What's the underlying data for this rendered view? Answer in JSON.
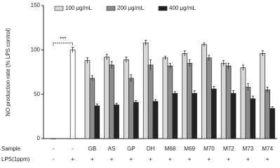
{
  "chart_data": {
    "type": "bar",
    "y_label": "NO production rate (% LPS control)",
    "row_headers": [
      "Sample",
      "LPS(1ppm)"
    ],
    "categories": [
      "-",
      "-",
      "GB",
      "AS",
      "GP",
      "DH",
      "M68",
      "M69",
      "M70",
      "M72",
      "M73",
      "M74"
    ],
    "lps_row": [
      "-",
      "+",
      "+",
      "+",
      "+",
      "+",
      "+",
      "+",
      "+",
      "+",
      "+",
      "+"
    ],
    "control": {
      "color": "#ffffff",
      "values": [
        0,
        100,
        null,
        null,
        null,
        null,
        null,
        null,
        null,
        null,
        null,
        null
      ],
      "errors": [
        null,
        3,
        null,
        null,
        null,
        null,
        null,
        null,
        null,
        null,
        null,
        null
      ]
    },
    "series": [
      {
        "name": "100 μg/mL",
        "color": "#d9d9d9",
        "values": [
          null,
          null,
          88,
          92,
          89,
          108,
          91,
          96,
          106,
          85,
          80,
          96
        ],
        "errors": [
          null,
          null,
          3,
          3,
          3,
          3,
          2,
          3,
          2,
          3,
          3,
          3
        ]
      },
      {
        "name": "200 μg/mL",
        "color": "#8c8c8c",
        "values": [
          null,
          null,
          68,
          83,
          68,
          83,
          82,
          85,
          91,
          82,
          58,
          55
        ],
        "errors": [
          null,
          null,
          3,
          4,
          4,
          6,
          3,
          4,
          3,
          3,
          4,
          3
        ]
      },
      {
        "name": "400 μg/mL",
        "color": "#222222",
        "values": [
          null,
          null,
          37,
          38,
          41,
          42,
          51,
          51,
          56,
          51,
          45,
          34
        ],
        "errors": [
          null,
          null,
          2,
          2,
          2,
          2,
          2,
          3,
          3,
          3,
          3,
          2
        ]
      }
    ],
    "annotation": "***",
    "ylim": [
      0,
      150
    ],
    "yticks": [
      0,
      50,
      100,
      150
    ]
  }
}
